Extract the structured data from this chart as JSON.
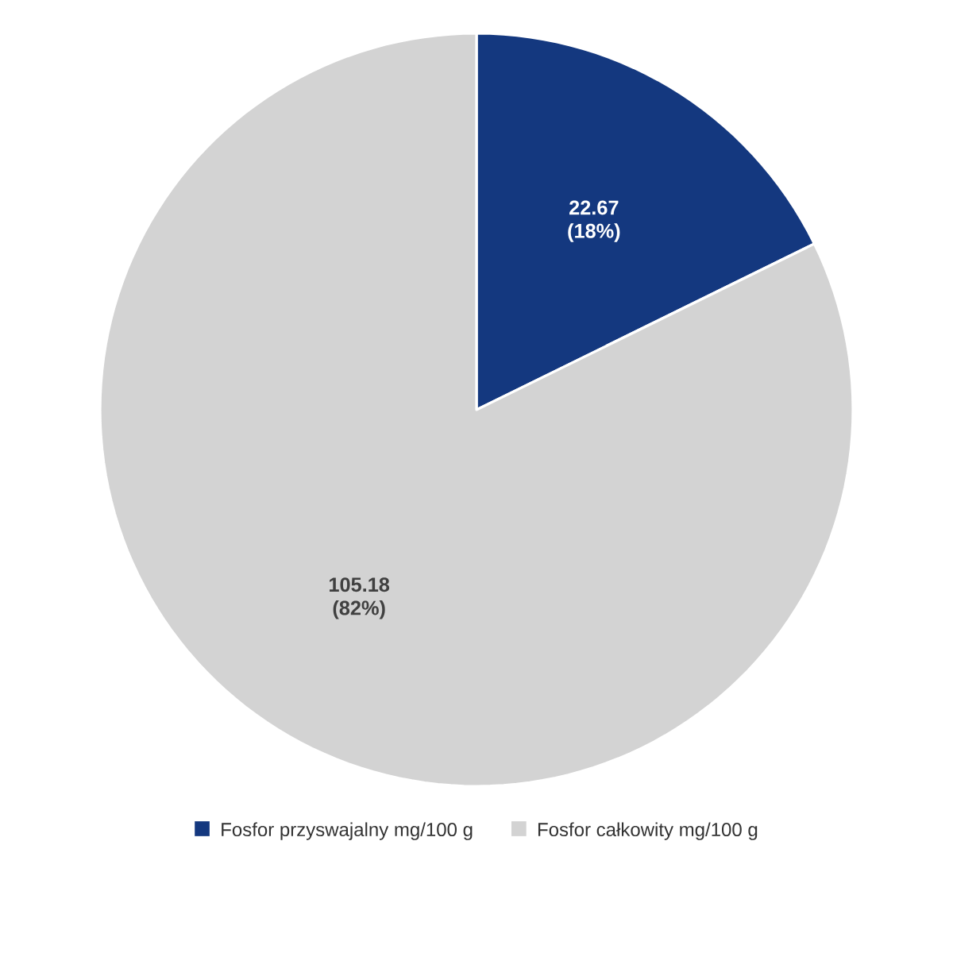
{
  "chart_data": {
    "type": "pie",
    "categories": [
      "Fosfor przyswajalny mg/100 g",
      "Fosfor całkowity mg/100 g"
    ],
    "values": [
      22.67,
      105.18
    ],
    "colors": [
      "#14387f",
      "#d3d3d3"
    ],
    "value_labels": [
      "22.67 (18%)",
      "105.18 (82%)"
    ],
    "legend": "bottom"
  }
}
